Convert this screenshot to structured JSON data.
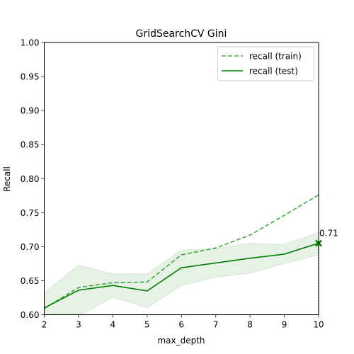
{
  "chart_data": {
    "type": "line",
    "title": "GridSearchCV Gini",
    "xlabel": "max_depth",
    "ylabel": "Recall",
    "xlim": [
      2,
      10
    ],
    "ylim": [
      0.6,
      1.0
    ],
    "x_ticks": [
      2,
      3,
      4,
      5,
      6,
      7,
      8,
      9,
      10
    ],
    "y_ticks": [
      "0.60",
      "0.65",
      "0.70",
      "0.75",
      "0.80",
      "0.85",
      "0.90",
      "0.95",
      "1.00"
    ],
    "x": [
      2,
      3,
      4,
      5,
      6,
      7,
      8,
      9,
      10
    ],
    "grid": false,
    "legend_position": "top-right",
    "series": [
      {
        "name": "recall (train)",
        "style": "dashed",
        "color": "#2ca02c",
        "values": [
          0.609,
          0.64,
          0.647,
          0.648,
          0.688,
          0.698,
          0.717,
          0.746,
          0.776
        ]
      },
      {
        "name": "recall (test)",
        "style": "solid",
        "color": "#008000",
        "values": [
          0.61,
          0.636,
          0.643,
          0.635,
          0.669,
          0.676,
          0.683,
          0.689,
          0.705
        ],
        "band_upper": [
          0.632,
          0.673,
          0.66,
          0.66,
          0.695,
          0.697,
          0.705,
          0.703,
          0.721
        ],
        "band_lower": [
          0.587,
          0.598,
          0.626,
          0.61,
          0.643,
          0.655,
          0.661,
          0.675,
          0.688
        ]
      }
    ],
    "best_marker": {
      "x": 10,
      "y": 0.705,
      "label": "0.71",
      "color": "#008000"
    }
  }
}
